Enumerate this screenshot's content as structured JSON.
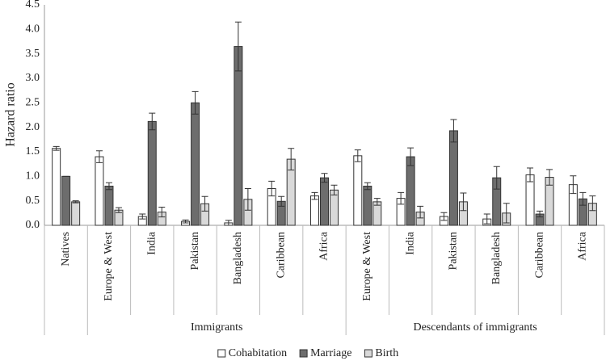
{
  "chart_data": {
    "type": "bar",
    "y_label": "Hazard ratio",
    "categories": [
      "Natives",
      "Europe & West",
      "India",
      "Pakistan",
      "Bangladesh",
      "Caribbean",
      "Africa",
      "Europe & West",
      "India",
      "Pakistan",
      "Bangladesh",
      "Caribbean",
      "Africa"
    ],
    "category_groups": [
      null,
      "Immigrants",
      "Immigrants",
      "Immigrants",
      "Immigrants",
      "Immigrants",
      "Immigrants",
      "Descendants of immigrants",
      "Descendants of immigrants",
      "Descendants of immigrants",
      "Descendants of immigrants",
      "Descendants of immigrants",
      "Descendants of immigrants"
    ],
    "series": [
      {
        "name": "Cohabitation",
        "color": "#ffffff",
        "values": [
          1.57,
          1.4,
          0.18,
          0.08,
          0.05,
          0.75,
          0.6,
          1.42,
          0.55,
          0.18,
          0.13,
          1.03,
          0.83
        ],
        "errors": [
          0.04,
          0.12,
          0.05,
          0.03,
          0.05,
          0.15,
          0.07,
          0.12,
          0.12,
          0.08,
          0.1,
          0.14,
          0.18
        ]
      },
      {
        "name": "Marriage",
        "color": "#6d6d6d",
        "values": [
          1.0,
          0.8,
          2.12,
          2.5,
          3.65,
          0.49,
          0.97,
          0.8,
          1.4,
          1.93,
          0.97,
          0.23,
          0.54
        ],
        "errors": [
          0,
          0.07,
          0.17,
          0.23,
          0.5,
          0.1,
          0.09,
          0.07,
          0.18,
          0.23,
          0.23,
          0.06,
          0.13
        ]
      },
      {
        "name": "Birth",
        "color": "#d9d9d9",
        "values": [
          0.48,
          0.31,
          0.27,
          0.44,
          0.53,
          1.35,
          0.72,
          0.48,
          0.27,
          0.48,
          0.25,
          0.98,
          0.45
        ],
        "errors": [
          0.02,
          0.05,
          0.1,
          0.15,
          0.22,
          0.22,
          0.1,
          0.07,
          0.12,
          0.18,
          0.2,
          0.16,
          0.15
        ]
      }
    ],
    "ylim": [
      0,
      4.5
    ],
    "yticks": [
      {
        "value": 0,
        "label": "0.0"
      },
      {
        "value": 0.5,
        "label": "0.5"
      },
      {
        "value": 1,
        "label": "1.0"
      },
      {
        "value": 1.5,
        "label": "1.5"
      },
      {
        "value": 2,
        "label": "2.0"
      },
      {
        "value": 2.5,
        "label": "2.5"
      },
      {
        "value": 3,
        "label": "3.0"
      },
      {
        "value": 3.5,
        "label": "3.5"
      },
      {
        "value": 4,
        "label": "4.0"
      },
      {
        "value": 4.5,
        "label": "4.5"
      }
    ],
    "legend": "bottom"
  }
}
